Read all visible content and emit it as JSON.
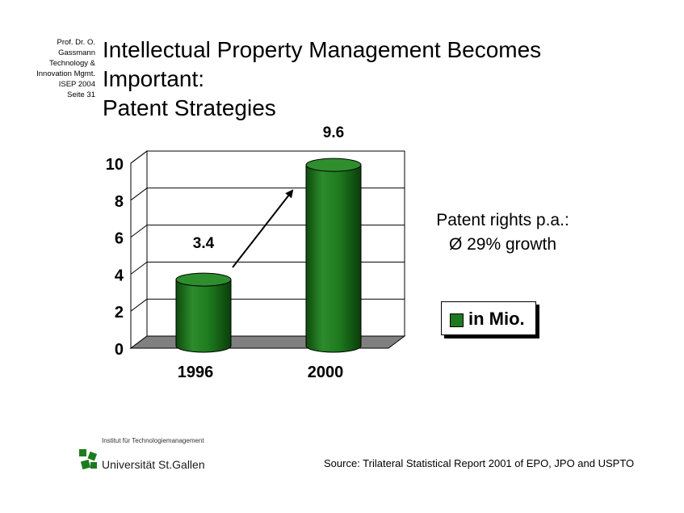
{
  "side_note": [
    "Prof. Dr. O.",
    "Gassmann",
    "Technology &",
    "Innovation Mgmt.",
    "ISEP 2004",
    "Seite 31"
  ],
  "title_lines": [
    "Intellectual Property Management Becomes",
    "Important:",
    "Patent Strategies"
  ],
  "chart_data": {
    "type": "bar",
    "title": "",
    "xlabel": "",
    "ylabel": "",
    "categories": [
      "1996",
      "2000"
    ],
    "values": [
      3.4,
      9.6
    ],
    "data_labels": [
      "3.4",
      "9.6"
    ],
    "series": [
      {
        "name": "in Mio.",
        "values": [
          3.4,
          9.6
        ]
      }
    ],
    "ylim": [
      0,
      10
    ],
    "y_ticks": [
      "0",
      "2",
      "4",
      "6",
      "8",
      "10"
    ],
    "grid": true,
    "legend_position": "right",
    "bar_style": "3d cylinder",
    "bar_color": "#1e7a1e",
    "annotation": "arrow from 1996 bar to 2000 bar"
  },
  "note": [
    "Patent rights p.a.:",
    "Ø 29% growth"
  ],
  "legend": {
    "label": "in Mio.",
    "color": "#1e7a1e"
  },
  "logo": {
    "small_text": "Institut für Technologiemanagement",
    "name": "Universität St.Gallen"
  },
  "source": "Source: Trilateral Statistical Report 2001 of EPO, JPO and USPTO"
}
